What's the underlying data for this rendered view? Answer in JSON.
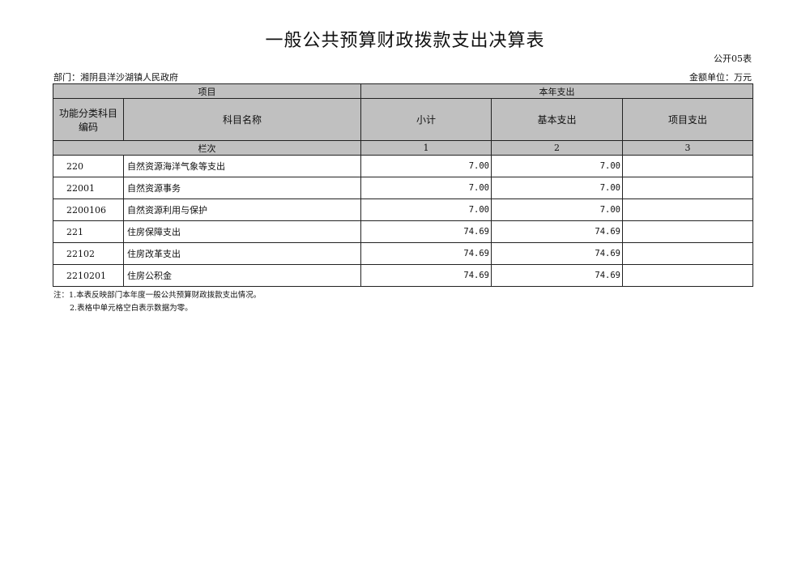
{
  "title": "一般公共预算财政拨款支出决算表",
  "form_code": "公开05表",
  "department": "部门：湘阴县洋沙湖镇人民政府",
  "unit": "金额单位：万元",
  "headers": {
    "item": "项目",
    "current_year": "本年支出",
    "func_code": "功能分类科目编码",
    "subject_name": "科目名称",
    "subtotal": "小计",
    "basic": "基本支出",
    "project": "项目支出",
    "col_index": "栏次",
    "c1": "1",
    "c2": "2",
    "c3": "3"
  },
  "rows": [
    {
      "code": "220",
      "name": "自然资源海洋气象等支出",
      "subtotal": "7.00",
      "basic": "7.00",
      "project": ""
    },
    {
      "code": "22001",
      "name": "自然资源事务",
      "subtotal": "7.00",
      "basic": "7.00",
      "project": ""
    },
    {
      "code": "2200106",
      "name": "自然资源利用与保护",
      "subtotal": "7.00",
      "basic": "7.00",
      "project": ""
    },
    {
      "code": "221",
      "name": "住房保障支出",
      "subtotal": "74.69",
      "basic": "74.69",
      "project": ""
    },
    {
      "code": "22102",
      "name": "住房改革支出",
      "subtotal": "74.69",
      "basic": "74.69",
      "project": ""
    },
    {
      "code": "2210201",
      "name": "住房公积金",
      "subtotal": "74.69",
      "basic": "74.69",
      "project": ""
    }
  ],
  "notes": [
    "注：1.本表反映部门本年度一般公共预算财政拨款支出情况。",
    "2.表格中单元格空白表示数据为零。"
  ]
}
